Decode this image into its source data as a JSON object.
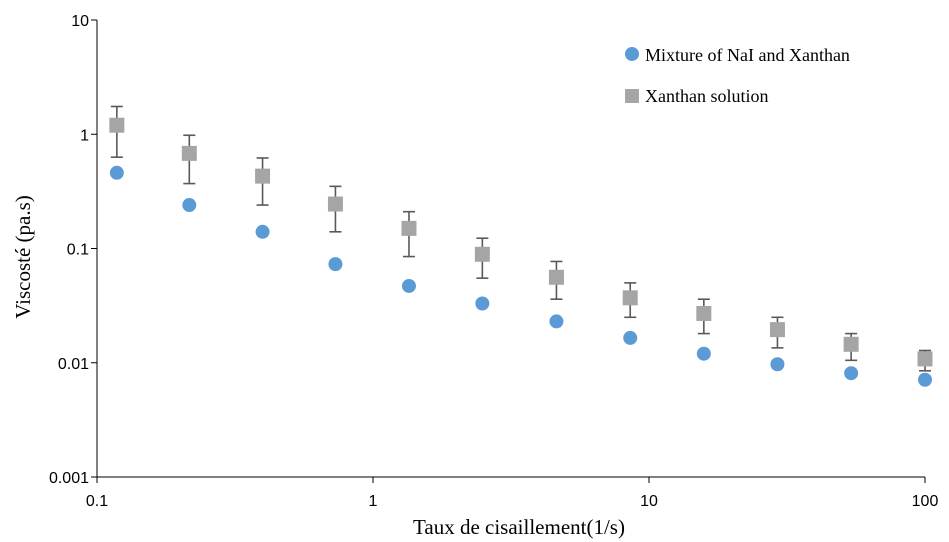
{
  "chart_data": {
    "type": "scatter",
    "title": "",
    "xlabel": "Taux de cisaillement(1/s)",
    "ylabel": "Viscosté (pa.s)",
    "xscale": "log",
    "yscale": "log",
    "xlim": [
      0.1,
      100
    ],
    "ylim": [
      0.001,
      10
    ],
    "x_ticks": [
      "0.1",
      "1",
      "10",
      "100"
    ],
    "y_ticks": [
      "0.001",
      "0.01",
      "0.1",
      "1",
      "10"
    ],
    "grid": false,
    "legend_position": "top-right",
    "series": [
      {
        "name": "Mixture of NaI and Xanthan",
        "marker": "circle",
        "color": "#5b9bd5",
        "x": [
          0.118,
          0.216,
          0.398,
          0.731,
          1.35,
          2.49,
          4.62,
          8.55,
          15.8,
          29.2,
          54.0,
          100
        ],
        "y": [
          0.46,
          0.24,
          0.14,
          0.073,
          0.047,
          0.033,
          0.023,
          0.0165,
          0.012,
          0.0097,
          0.0081,
          0.0071
        ]
      },
      {
        "name": "Xanthan solution",
        "marker": "square",
        "color": "#a5a5a5",
        "x": [
          0.118,
          0.216,
          0.398,
          0.731,
          1.35,
          2.49,
          4.62,
          8.55,
          15.8,
          29.2,
          54.0,
          100
        ],
        "y": [
          1.2,
          0.68,
          0.43,
          0.245,
          0.15,
          0.089,
          0.056,
          0.037,
          0.027,
          0.0195,
          0.0145,
          0.0108
        ],
        "err_low": [
          0.63,
          0.37,
          0.24,
          0.14,
          0.085,
          0.055,
          0.036,
          0.025,
          0.018,
          0.0135,
          0.0105,
          0.0085
        ],
        "err_high": [
          1.75,
          0.98,
          0.62,
          0.35,
          0.21,
          0.123,
          0.077,
          0.05,
          0.036,
          0.025,
          0.018,
          0.0128
        ]
      }
    ]
  }
}
